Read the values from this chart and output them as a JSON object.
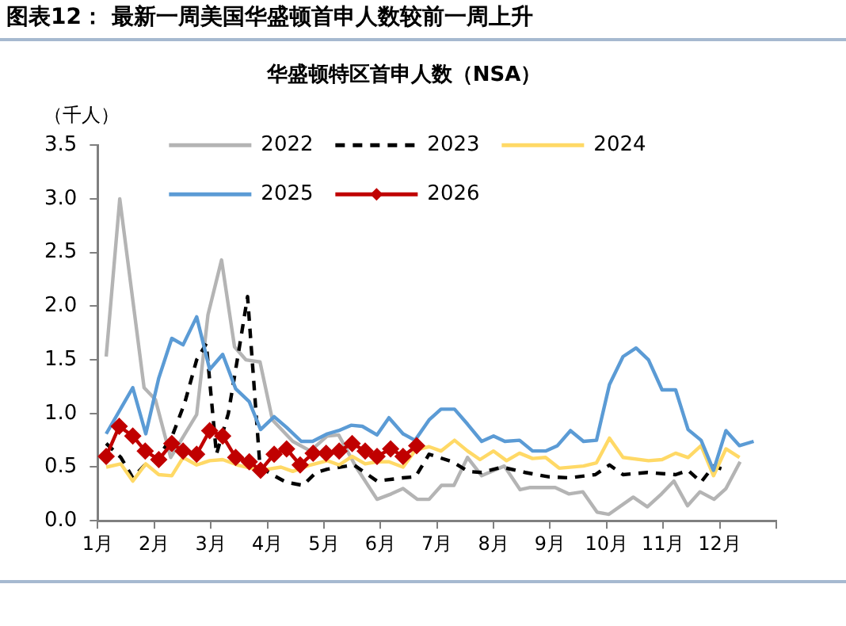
{
  "chart_data": {
    "type": "line",
    "title": "图表12： 最新一周美国华盛顿首申人数较前一周上升",
    "subtitle": "华盛顿特区首申人数（NSA）",
    "ylabel": "（千人）",
    "xlim": [
      1,
      13
    ],
    "xticks": [
      {
        "value": 1,
        "label": "1月"
      },
      {
        "value": 2,
        "label": "2月"
      },
      {
        "value": 3,
        "label": "3月"
      },
      {
        "value": 4,
        "label": "4月"
      },
      {
        "value": 5,
        "label": "5月"
      },
      {
        "value": 6,
        "label": "6月"
      },
      {
        "value": 7,
        "label": "7月"
      },
      {
        "value": 8,
        "label": "8月"
      },
      {
        "value": 9,
        "label": "9月"
      },
      {
        "value": 10,
        "label": "10月"
      },
      {
        "value": 11,
        "label": "11月"
      },
      {
        "value": 12,
        "label": "12月"
      },
      {
        "value": 13,
        "label": null
      }
    ],
    "ylim": [
      0,
      3.5
    ],
    "yticks": [
      {
        "value": 0,
        "label": "0.0"
      },
      {
        "value": 0.5,
        "label": "0.5"
      },
      {
        "value": 1,
        "label": "1.0"
      },
      {
        "value": 1.5,
        "label": "1.5"
      },
      {
        "value": 2,
        "label": "2.0"
      },
      {
        "value": 2.5,
        "label": "2.5"
      },
      {
        "value": 3,
        "label": "3.0"
      },
      {
        "value": 3.5,
        "label": "3.5"
      }
    ],
    "grid": false,
    "legend": "top",
    "series": [
      {
        "name": "2022",
        "color": "#b4b4b4",
        "line_style": "solid",
        "marker": "none",
        "x": [
          1.15,
          1.39,
          1.82,
          2.02,
          2.29,
          2.75,
          2.95,
          3.19,
          3.42,
          3.62,
          3.87,
          4.09,
          4.45,
          4.76,
          5.06,
          5.26,
          5.57,
          5.94,
          6.19,
          6.4,
          6.65,
          6.86,
          7.08,
          7.3,
          7.54,
          7.79,
          8.19,
          8.47,
          8.65,
          9.09,
          9.33,
          9.58,
          9.83,
          10.04,
          10.47,
          10.72,
          10.97,
          11.19,
          11.43,
          11.65,
          11.9,
          12.11,
          12.36
        ],
        "values": [
          1.53,
          3.0,
          1.24,
          1.13,
          0.59,
          0.99,
          1.92,
          2.43,
          1.62,
          1.5,
          1.48,
          0.94,
          0.74,
          0.65,
          0.79,
          0.8,
          0.5,
          0.2,
          0.25,
          0.3,
          0.2,
          0.2,
          0.33,
          0.33,
          0.59,
          0.42,
          0.51,
          0.29,
          0.31,
          0.31,
          0.25,
          0.27,
          0.08,
          0.06,
          0.22,
          0.13,
          0.25,
          0.37,
          0.14,
          0.27,
          0.2,
          0.3,
          0.55
        ]
      },
      {
        "name": "2023",
        "color": "#000000",
        "line_style": "dashed",
        "marker": "none",
        "x": [
          1.15,
          1.41,
          1.62,
          1.85,
          2.08,
          2.31,
          2.54,
          2.75,
          2.92,
          3.1,
          3.31,
          3.5,
          3.65,
          3.87,
          4.12,
          4.33,
          4.63,
          4.86,
          5.06,
          5.53,
          5.94,
          6.4,
          6.62,
          6.86,
          7.27,
          7.55,
          7.79,
          8.15,
          8.56,
          8.97,
          9.33,
          9.8,
          10.05,
          10.29,
          10.72,
          11.22,
          11.44,
          11.67,
          11.89,
          12.11
        ],
        "values": [
          0.72,
          0.59,
          0.4,
          0.53,
          0.6,
          0.78,
          1.1,
          1.5,
          1.65,
          0.62,
          1.0,
          1.6,
          2.09,
          0.5,
          0.42,
          0.36,
          0.33,
          0.45,
          0.48,
          0.52,
          0.37,
          0.4,
          0.41,
          0.62,
          0.55,
          0.46,
          0.45,
          0.5,
          0.45,
          0.41,
          0.4,
          0.43,
          0.52,
          0.43,
          0.45,
          0.43,
          0.47,
          0.36,
          0.51,
          0.47
        ]
      },
      {
        "name": "2024",
        "color": "#ffd966",
        "line_style": "solid",
        "marker": "none",
        "x": [
          1.15,
          1.41,
          1.62,
          1.85,
          2.08,
          2.31,
          2.51,
          2.75,
          2.98,
          3.21,
          3.47,
          3.88,
          4.24,
          4.45,
          4.76,
          5.06,
          5.27,
          5.5,
          5.73,
          5.94,
          6.15,
          6.4,
          6.62,
          6.86,
          7.07,
          7.31,
          7.54,
          7.76,
          8.0,
          8.23,
          8.46,
          8.69,
          8.92,
          9.16,
          9.59,
          9.82,
          10.05,
          10.29,
          10.74,
          10.98,
          11.22,
          11.44,
          11.67,
          11.89,
          12.11,
          12.35
        ],
        "values": [
          0.5,
          0.53,
          0.37,
          0.53,
          0.43,
          0.42,
          0.59,
          0.52,
          0.56,
          0.57,
          0.52,
          0.47,
          0.5,
          0.46,
          0.52,
          0.56,
          0.52,
          0.6,
          0.53,
          0.55,
          0.55,
          0.5,
          0.66,
          0.69,
          0.65,
          0.75,
          0.65,
          0.57,
          0.65,
          0.56,
          0.63,
          0.58,
          0.59,
          0.49,
          0.51,
          0.54,
          0.77,
          0.59,
          0.56,
          0.57,
          0.63,
          0.59,
          0.7,
          0.42,
          0.67,
          0.59
        ]
      },
      {
        "name": "2025",
        "color": "#5b9bd5",
        "line_style": "solid",
        "marker": "none",
        "x": [
          1.15,
          1.62,
          1.85,
          2.08,
          2.31,
          2.51,
          2.75,
          2.98,
          3.21,
          3.44,
          3.68,
          3.88,
          4.12,
          4.34,
          4.6,
          4.8,
          5.06,
          5.26,
          5.48,
          5.68,
          5.94,
          6.15,
          6.4,
          6.61,
          6.86,
          7.07,
          7.31,
          7.54,
          7.79,
          8.0,
          8.2,
          8.46,
          8.69,
          8.92,
          9.13,
          9.36,
          9.59,
          9.82,
          10.05,
          10.29,
          10.52,
          10.74,
          10.98,
          11.22,
          11.44,
          11.67,
          11.89,
          12.11,
          12.35,
          12.6
        ],
        "values": [
          0.81,
          1.24,
          0.81,
          1.33,
          1.7,
          1.64,
          1.9,
          1.41,
          1.55,
          1.23,
          1.11,
          0.85,
          0.97,
          0.87,
          0.74,
          0.74,
          0.81,
          0.84,
          0.89,
          0.88,
          0.8,
          0.96,
          0.81,
          0.75,
          0.94,
          1.04,
          1.04,
          0.9,
          0.74,
          0.79,
          0.74,
          0.75,
          0.65,
          0.65,
          0.7,
          0.84,
          0.74,
          0.75,
          1.27,
          1.53,
          1.61,
          1.5,
          1.22,
          1.22,
          0.85,
          0.75,
          0.47,
          0.84,
          0.7,
          0.74
        ]
      },
      {
        "name": "2026",
        "color": "#c00000",
        "line_style": "solid",
        "marker": "diamond",
        "x": [
          1.15,
          1.38,
          1.62,
          1.84,
          2.08,
          2.31,
          2.51,
          2.75,
          2.98,
          3.21,
          3.44,
          3.68,
          3.88,
          4.12,
          4.34,
          4.58,
          4.81,
          5.04,
          5.27,
          5.5,
          5.73,
          5.94,
          6.18,
          6.4,
          6.64
        ],
        "values": [
          0.6,
          0.88,
          0.79,
          0.65,
          0.57,
          0.72,
          0.65,
          0.62,
          0.84,
          0.79,
          0.59,
          0.55,
          0.47,
          0.62,
          0.67,
          0.52,
          0.63,
          0.63,
          0.65,
          0.72,
          0.65,
          0.6,
          0.67,
          0.6,
          0.7
        ]
      }
    ]
  }
}
